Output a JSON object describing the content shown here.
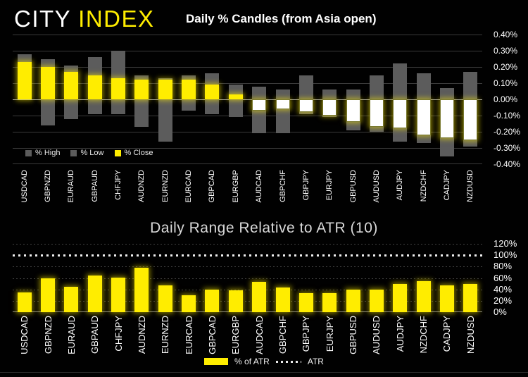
{
  "logo": {
    "city": "CITY",
    "index": "INDEX"
  },
  "colors": {
    "background": "#010101",
    "brand_yellow": "#ffed00",
    "bar_gray": "#5c5c5c",
    "close_negative": "#ffffff",
    "gridline": "#3a3a3a",
    "zero_line": "#ababab",
    "atr_dotted": "#efefef",
    "text": "#ffffff"
  },
  "chart_data": [
    {
      "type": "bar",
      "title": "Daily % Candles (from Asia open)",
      "categories": [
        "USDCAD",
        "GBPNZD",
        "EURAUD",
        "GBPAUD",
        "CHFJPY",
        "AUDNZD",
        "EURNZD",
        "EURCAD",
        "GBPCAD",
        "EURGBP",
        "AUDCAD",
        "GBPCHF",
        "GBPJPY",
        "EURJPY",
        "GBPUSD",
        "AUDUSD",
        "AUDJPY",
        "NZDCHF",
        "CADJPY",
        "NZDUSD"
      ],
      "series": [
        {
          "name": "% High",
          "values": [
            0.28,
            0.25,
            0.21,
            0.26,
            0.3,
            0.15,
            0.13,
            0.15,
            0.16,
            0.09,
            0.08,
            0.06,
            0.15,
            0.06,
            0.06,
            0.15,
            0.22,
            0.16,
            0.07,
            0.17
          ]
        },
        {
          "name": "% Low",
          "values": [
            0.0,
            -0.16,
            -0.12,
            -0.09,
            -0.09,
            -0.17,
            -0.26,
            -0.07,
            -0.09,
            -0.11,
            -0.21,
            -0.21,
            -0.09,
            -0.11,
            -0.19,
            -0.2,
            -0.26,
            -0.27,
            -0.35,
            -0.29
          ]
        },
        {
          "name": "% Close",
          "values": [
            0.23,
            0.2,
            0.17,
            0.15,
            0.13,
            0.12,
            0.12,
            0.12,
            0.09,
            0.03,
            -0.07,
            -0.06,
            -0.08,
            -0.1,
            -0.14,
            -0.17,
            -0.18,
            -0.22,
            -0.24,
            -0.25
          ]
        }
      ],
      "ylim": [
        -0.4,
        0.4
      ],
      "ytick_labels": [
        "0.40%",
        "0.30%",
        "0.20%",
        "0.10%",
        "0.00%",
        "-0.10%",
        "-0.20%",
        "-0.30%",
        "-0.40%"
      ],
      "legend": [
        "% High",
        "% Low",
        "% Close"
      ],
      "legend_position": "inside-bottom-left",
      "grid": true
    },
    {
      "type": "bar",
      "title": "Daily Range Relative to ATR (10)",
      "categories": [
        "USDCAD",
        "GBPNZD",
        "EURAUD",
        "GBPAUD",
        "CHFJPY",
        "AUDNZD",
        "EURNZD",
        "EURCAD",
        "GBPCAD",
        "EURGBP",
        "AUDCAD",
        "GBPCHF",
        "GBPJPY",
        "EURJPY",
        "GBPUSD",
        "AUDUSD",
        "AUDJPY",
        "NZDCHF",
        "CADJPY",
        "NZDUSD"
      ],
      "series": [
        {
          "name": "% of ATR",
          "values": [
            35,
            60,
            45,
            64,
            61,
            78,
            47,
            30,
            39,
            38,
            53,
            43,
            33,
            34,
            40,
            39,
            50,
            55,
            47,
            50
          ]
        }
      ],
      "atr_label": "ATR",
      "atr_value": 100,
      "ylim": [
        0,
        120
      ],
      "ytick_labels": [
        "120%",
        "100%",
        "80%",
        "60%",
        "40%",
        "20%",
        "0%"
      ],
      "legend": [
        "% of ATR",
        "ATR"
      ],
      "legend_position": "below-center",
      "grid": true
    }
  ]
}
